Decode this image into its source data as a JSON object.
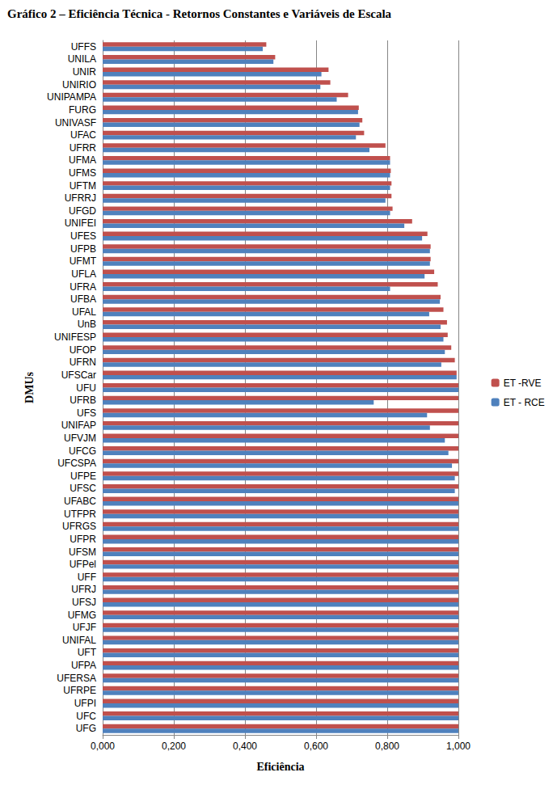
{
  "chart_data": {
    "type": "bar",
    "orientation": "horizontal",
    "title": "Gráfico 2 – Eficiência Técnica - Retornos Constantes e Variáveis de Escala",
    "x_label": "Eficiência",
    "y_label": "DMUs",
    "categories": [
      "UFFS",
      "UNILA",
      "UNIR",
      "UNIRIO",
      "UNIPAMPA",
      "FURG",
      "UNIVASF",
      "UFAC",
      "UFRR",
      "UFMA",
      "UFMS",
      "UFTM",
      "UFRRJ",
      "UFGD",
      "UNIFEI",
      "UFES",
      "UFPB",
      "UFMT",
      "UFLA",
      "UFRA",
      "UFBA",
      "UFAL",
      "UnB",
      "UNIFESP",
      "UFOP",
      "UFRN",
      "UFSCar",
      "UFU",
      "UFRB",
      "UFS",
      "UNIFAP",
      "UFVJM",
      "UFCG",
      "UFCSPA",
      "UFPE",
      "UFSC",
      "UFABC",
      "UTFPR",
      "UFRGS",
      "UFPR",
      "UFSM",
      "UFPel",
      "UFF",
      "UFRJ",
      "UFSJ",
      "UFMG",
      "UFJF",
      "UNIFAL",
      "UFT",
      "UFPA",
      "UFERSA",
      "UFRPE",
      "UFPI",
      "UFC",
      "UFG"
    ],
    "series": [
      {
        "name": "ET -RVE",
        "color": "#C0504D",
        "values": [
          0.46,
          0.485,
          0.635,
          0.64,
          0.69,
          0.72,
          0.73,
          0.735,
          0.795,
          0.808,
          0.81,
          0.812,
          0.812,
          0.815,
          0.87,
          0.913,
          0.922,
          0.922,
          0.932,
          0.942,
          0.95,
          0.958,
          0.968,
          0.97,
          0.98,
          0.99,
          0.995,
          1.0,
          1.0,
          1.0,
          1.0,
          1.0,
          1.0,
          1.0,
          1.0,
          1.0,
          1.0,
          1.0,
          1.0,
          1.0,
          1.0,
          1.0,
          1.0,
          1.0,
          1.0,
          1.0,
          1.0,
          1.0,
          1.0,
          1.0,
          1.0,
          1.0,
          1.0,
          1.0,
          1.0
        ]
      },
      {
        "name": "ET - RCE",
        "color": "#4F81BD",
        "values": [
          0.45,
          0.48,
          0.615,
          0.612,
          0.658,
          0.718,
          0.722,
          0.712,
          0.75,
          0.808,
          0.808,
          0.808,
          0.795,
          0.808,
          0.848,
          0.898,
          0.92,
          0.92,
          0.905,
          0.808,
          0.948,
          0.918,
          0.95,
          0.958,
          0.962,
          0.952,
          0.995,
          1.0,
          0.762,
          0.912,
          0.92,
          0.962,
          0.972,
          0.982,
          0.99,
          0.99,
          1.0,
          1.0,
          1.0,
          1.0,
          1.0,
          1.0,
          1.0,
          1.0,
          1.0,
          1.0,
          1.0,
          1.0,
          1.0,
          1.0,
          1.0,
          1.0,
          1.0,
          1.0,
          1.0
        ]
      }
    ],
    "xlim": [
      0,
      1
    ],
    "xticks": [
      {
        "value": 0,
        "label": "0,000"
      },
      {
        "value": 0.2,
        "label": "0,200"
      },
      {
        "value": 0.4,
        "label": "0,400"
      },
      {
        "value": 0.6,
        "label": "0,600"
      },
      {
        "value": 0.8,
        "label": "0,800"
      },
      {
        "value": 1,
        "label": "1,000"
      }
    ],
    "grid": true,
    "legend": "right"
  }
}
